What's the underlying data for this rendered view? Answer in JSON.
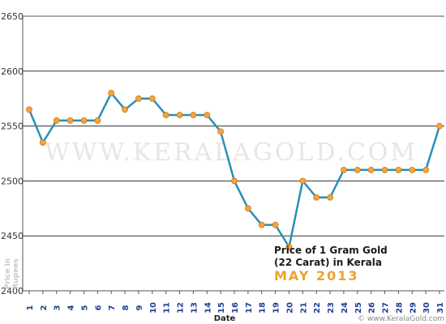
{
  "chart_data": {
    "type": "line",
    "title": "",
    "xlabel": "Date",
    "ylabel_line1": "Price in",
    "ylabel_line2": "Rupees",
    "ylim": [
      2400,
      2650
    ],
    "yticks": [
      2400,
      2450,
      2500,
      2550,
      2600,
      2650
    ],
    "grid": true,
    "x": [
      1,
      2,
      3,
      4,
      5,
      6,
      7,
      8,
      9,
      10,
      11,
      12,
      13,
      14,
      15,
      16,
      17,
      18,
      19,
      20,
      21,
      22,
      23,
      24,
      25,
      26,
      27,
      28,
      29,
      30,
      31
    ],
    "series": [
      {
        "color": "#2a8fb8",
        "marker_color": "#f7a43a",
        "values": [
          2565,
          2535,
          2555,
          2555,
          2555,
          2555,
          2580,
          2565,
          2575,
          2575,
          2560,
          2560,
          2560,
          2560,
          2545,
          2500,
          2475,
          2460,
          2460,
          2440,
          2500,
          2485,
          2485,
          2510,
          2510,
          2510,
          2510,
          2510,
          2510,
          2510,
          2550
        ]
      }
    ],
    "annotation_line1": "Price of 1 Gram Gold",
    "annotation_line2": "(22 Carat) in Kerala",
    "annotation_line3": "MAY 2013",
    "watermark": "WWW.KERALAGOLD.COM",
    "credit": "© www.KeralaGold.com"
  }
}
